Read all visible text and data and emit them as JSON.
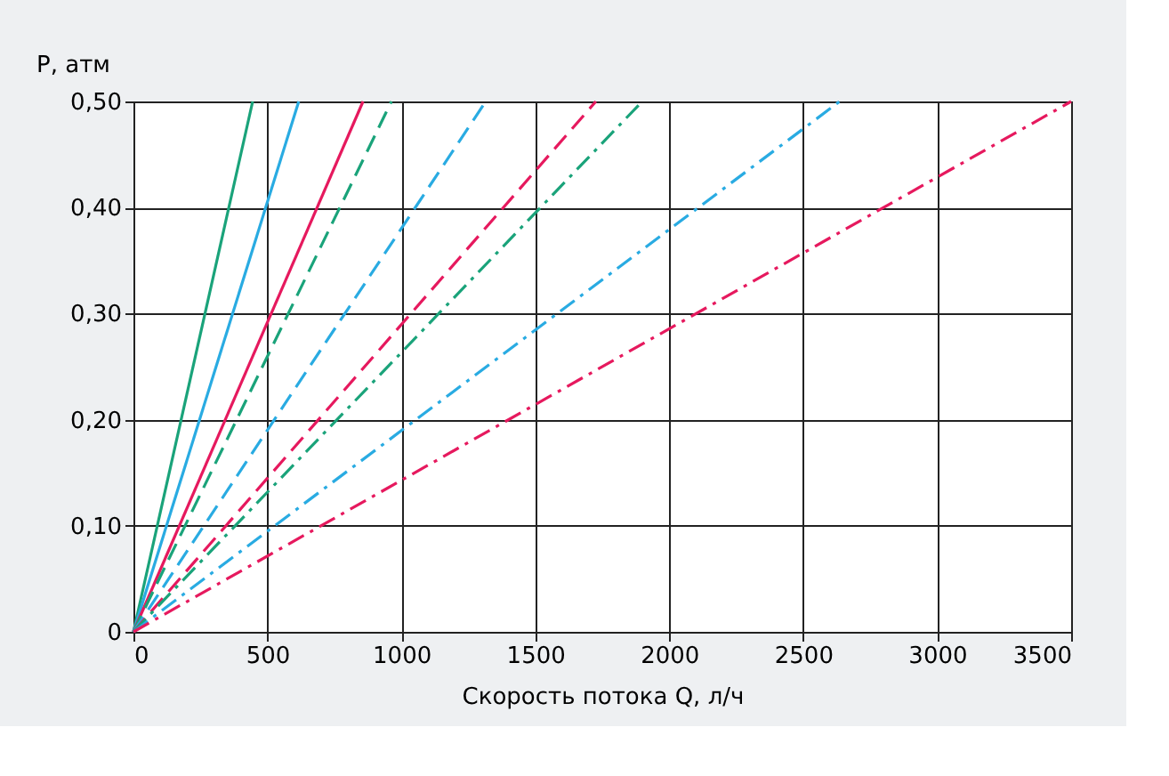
{
  "chart_data": {
    "type": "line",
    "xlabel": "Скорость потока Q, л/ч",
    "ylabel": "P, атм",
    "xlim": [
      0,
      3500
    ],
    "xticks": [
      0,
      500,
      1000,
      1500,
      2000,
      2500,
      3000,
      3500
    ],
    "ylim": [
      0,
      0.5
    ],
    "yticks": [
      0,
      {
        "value": 0.1,
        "label": "0,10"
      },
      {
        "value": 0.2,
        "label": "0,20"
      },
      {
        "value": 0.3,
        "label": "0,30"
      },
      {
        "value": 0.4,
        "label": "0,40"
      },
      {
        "value": 0.5,
        "label": "0,50"
      }
    ],
    "grid": true,
    "marker": "none",
    "series": [
      {
        "color": "#1aa37a",
        "line_style": "solid",
        "x": [
          0,
          445
        ],
        "values": [
          0,
          0.5
        ]
      },
      {
        "color": "#29abe2",
        "line_style": "solid",
        "x": [
          0,
          617
        ],
        "values": [
          0,
          0.5
        ]
      },
      {
        "color": "#e6195e",
        "line_style": "solid",
        "x": [
          0,
          857
        ],
        "values": [
          0,
          0.5
        ]
      },
      {
        "color": "#1aa37a",
        "line_style": "dashed",
        "x": [
          0,
          963
        ],
        "values": [
          0,
          0.5
        ]
      },
      {
        "color": "#29abe2",
        "line_style": "dashed",
        "x": [
          0,
          1315
        ],
        "values": [
          0,
          0.5
        ]
      },
      {
        "color": "#e6195e",
        "line_style": "dashed",
        "x": [
          0,
          1726
        ],
        "values": [
          0,
          0.5
        ]
      },
      {
        "color": "#1aa37a",
        "line_style": "dashdot",
        "x": [
          0,
          1899
        ],
        "values": [
          0,
          0.5
        ]
      },
      {
        "color": "#29abe2",
        "line_style": "dashdot",
        "x": [
          0,
          2636
        ],
        "values": [
          0,
          0.5
        ]
      },
      {
        "color": "#e6195e",
        "line_style": "dashdot",
        "x": [
          0,
          3500
        ],
        "values": [
          0,
          0.5
        ]
      }
    ]
  }
}
